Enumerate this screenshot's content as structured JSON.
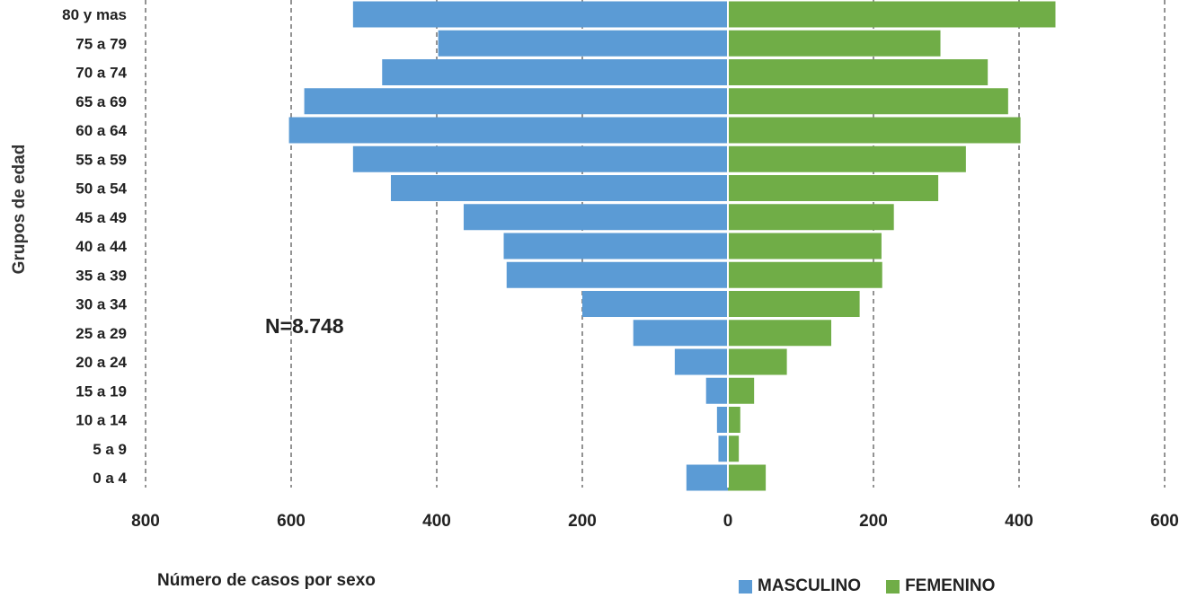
{
  "chart_data": {
    "type": "bar",
    "orientation": "horizontal",
    "layout": "population-pyramid",
    "ylabel": "Grupos de edad",
    "xlabel": "Número de casos por sexo",
    "annotation": "N=8.748",
    "categories": [
      "80 y mas",
      "75 a 79",
      "70 a 74",
      "65 a 69",
      "60 a 64",
      "55 a 59",
      "50 a 54",
      "45 a 49",
      "40 a 44",
      "35 a 39",
      "30 a 34",
      "25 a 29",
      "20 a 24",
      "15 a 19",
      "10 a 14",
      "5 a 9",
      "0 a 4"
    ],
    "x_ticks": [
      "800",
      "600",
      "400",
      "200",
      "0",
      "200",
      "400",
      "600"
    ],
    "xlim": [
      -800,
      600
    ],
    "grid": "vertical dashed",
    "legend_position": "bottom-right",
    "series": [
      {
        "name": "MASCULINO",
        "color": "#5B9BD5",
        "values": [
          515,
          398,
          475,
          582,
          603,
          515,
          463,
          363,
          308,
          304,
          200,
          130,
          73,
          30,
          15,
          13,
          57
        ]
      },
      {
        "name": "FEMENINO",
        "color": "#70AD47",
        "values": [
          450,
          292,
          357,
          385,
          402,
          327,
          289,
          228,
          211,
          212,
          181,
          142,
          81,
          36,
          17,
          15,
          52
        ]
      }
    ]
  }
}
